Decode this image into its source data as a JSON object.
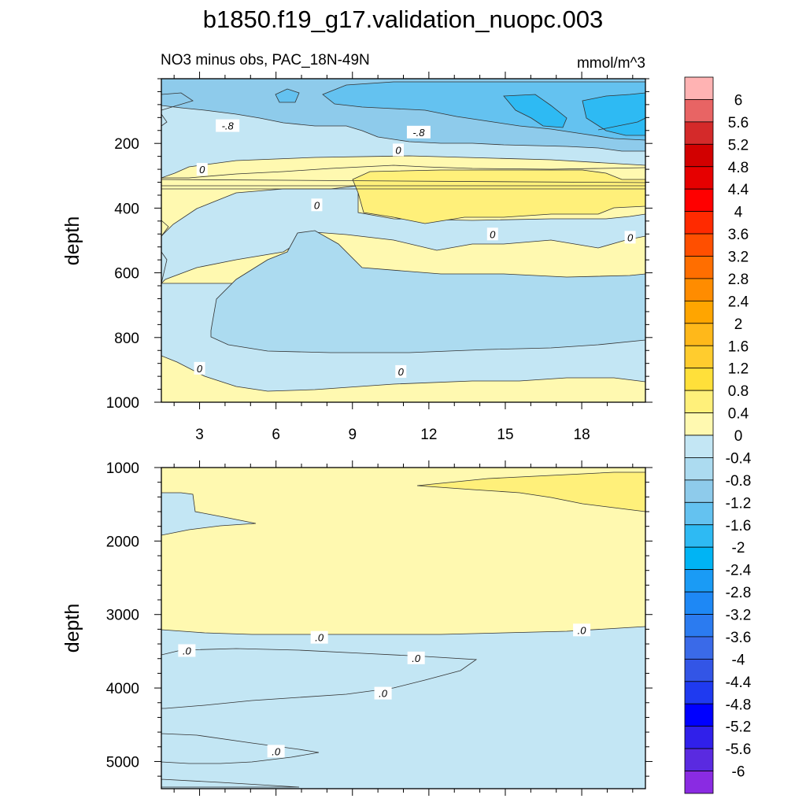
{
  "chart_data": {
    "type": "contour",
    "title": "b1850.f19_g17.validation_nuopc.003",
    "subtitle_left": "NO3 minus obs, PAC_18N-49N",
    "units": "mmol/m^3",
    "panels": [
      {
        "id": "upper",
        "xlim": [
          1.5,
          20.5
        ],
        "ylim": [
          0,
          1000
        ],
        "y_reversed": true,
        "ylabel": "depth",
        "x_ticks": [
          3,
          6,
          9,
          12,
          15,
          18
        ],
        "x_tick_labels": [
          "3",
          "6",
          "9",
          "12",
          "15",
          "18"
        ],
        "y_ticks": [
          200,
          400,
          600,
          800,
          1000
        ],
        "y_tick_labels": [
          "200",
          "400",
          "600",
          "800",
          "1000"
        ],
        "contour_labels": [
          {
            "text": "-.8",
            "x": 4.1,
            "y": 145
          },
          {
            "text": "-.8",
            "x": 11.6,
            "y": 165
          },
          {
            "text": "0",
            "x": 3.1,
            "y": 280
          },
          {
            "text": "0",
            "x": 10.8,
            "y": 220
          },
          {
            "text": "0",
            "x": 7.6,
            "y": 390
          },
          {
            "text": "0",
            "x": 14.5,
            "y": 480
          },
          {
            "text": "0",
            "x": 19.9,
            "y": 490
          },
          {
            "text": "0",
            "x": 3.0,
            "y": 895
          },
          {
            "text": "0",
            "x": 10.9,
            "y": 905
          }
        ]
      },
      {
        "id": "lower",
        "xlim": [
          1.5,
          20.5
        ],
        "ylim": [
          1000,
          5370
        ],
        "y_reversed": true,
        "ylabel": "depth",
        "y_ticks": [
          1000,
          2000,
          3000,
          4000,
          5000
        ],
        "y_tick_labels": [
          "1000",
          "2000",
          "3000",
          "4000",
          "5000"
        ],
        "contour_labels": [
          {
            "text": ".0",
            "x": 7.7,
            "y": 3310
          },
          {
            "text": ".0",
            "x": 18.0,
            "y": 3210
          },
          {
            "text": ".0",
            "x": 2.5,
            "y": 3490
          },
          {
            "text": ".0",
            "x": 11.5,
            "y": 3590
          },
          {
            "text": ".0",
            "x": 10.2,
            "y": 4070
          },
          {
            "text": ".0",
            "x": 6.0,
            "y": 4860
          }
        ]
      }
    ],
    "colorbar": {
      "labels": [
        "6",
        "5.6",
        "5.2",
        "4.8",
        "4.4",
        "4",
        "3.6",
        "3.2",
        "2.8",
        "2.4",
        "2",
        "1.6",
        "1.2",
        "0.8",
        "0.4",
        "0",
        "-0.4",
        "-0.8",
        "-1.2",
        "-1.6",
        "-2",
        "-2.4",
        "-2.8",
        "-3.2",
        "-3.6",
        "-4",
        "-4.4",
        "-4.8",
        "-5.2",
        "-5.6",
        "-6"
      ],
      "colors": [
        "#ffb3b3",
        "#e86464",
        "#d42a2a",
        "#d20000",
        "#e60000",
        "#ff0000",
        "#ff2a00",
        "#ff4f00",
        "#ff6e00",
        "#ff8c00",
        "#ffa500",
        "#ffb81a",
        "#ffcc2e",
        "#ffe03a",
        "#fff07a",
        "#fff9b0",
        "#c3e6f4",
        "#acdbf0",
        "#8ecbeb",
        "#64c2f0",
        "#2ebaf3",
        "#00b4f4",
        "#1a9bf5",
        "#1e88f5",
        "#2b7bf0",
        "#3a6ae8",
        "#3355e6",
        "#1f3af0",
        "#0000ff",
        "#3020ea",
        "#5a2ae0",
        "#8a2be2"
      ]
    }
  },
  "colors": {
    "light_yellow": "#fff9b0",
    "yellow": "#fff07a",
    "very_light_blue": "#c3e6f4",
    "light_blue": "#acdbf0",
    "medium_blue": "#8ecbeb",
    "blue": "#64c2f0",
    "bright_blue": "#2ebaf3"
  }
}
